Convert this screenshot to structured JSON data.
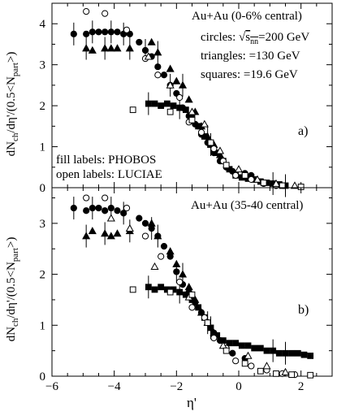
{
  "chart_data": [
    {
      "type": "scatter",
      "panel_label": "a)",
      "title": "Au+Au (0-6% central)",
      "annotations": [
        "circles: √s_nn=200 GeV",
        "triangles: =130 GeV",
        "squares: =19.6 GeV",
        "fill labels: PHOBOS",
        "open labels: LUCIAE"
      ],
      "ylabel": "dN_ch/dη'/(0.5<N_part>)",
      "xlabel": "",
      "xlim": [
        -6,
        3
      ],
      "ylim": [
        0,
        4.5
      ],
      "yticks": [
        0,
        1,
        2,
        3,
        4
      ],
      "series": [
        {
          "name": "circles: √s_nn=200 GeV",
          "marker": "circle",
          "fill": "filled",
          "source": "PHOBOS",
          "x": [
            -5.3,
            -4.9,
            -4.7,
            -4.5,
            -4.3,
            -4.1,
            -3.9,
            -3.7,
            -3.5,
            -3.2,
            -3.0,
            -2.8,
            -2.6,
            -2.4,
            -2.2,
            -2.0,
            -1.8,
            -1.6,
            -1.4,
            -1.2,
            -1.0,
            -0.8,
            -0.6,
            -0.4,
            -0.2,
            0.2,
            0.4
          ],
          "y": [
            3.75,
            3.75,
            3.8,
            3.8,
            3.8,
            3.8,
            3.8,
            3.75,
            3.75,
            3.55,
            3.35,
            3.2,
            2.95,
            2.75,
            2.5,
            2.3,
            1.95,
            1.75,
            1.55,
            1.3,
            1.1,
            0.85,
            0.65,
            0.5,
            0.4,
            0.35,
            0.3
          ]
        },
        {
          "name": "triangles: =130 GeV",
          "marker": "triangle",
          "fill": "filled",
          "source": "PHOBOS",
          "x": [
            -4.9,
            -4.7,
            -4.3,
            -4.1,
            -3.9,
            -3.5,
            -2.8,
            -2.6,
            -2.2,
            -2.0,
            -1.8,
            -1.6,
            -1.4,
            -1.2,
            -1.0,
            -0.8,
            -0.6
          ],
          "y": [
            3.4,
            3.35,
            3.4,
            3.4,
            3.4,
            3.4,
            3.55,
            3.3,
            2.9,
            2.6,
            2.5,
            2.15,
            1.85,
            1.5,
            1.25,
            1.05,
            0.8
          ]
        },
        {
          "name": "squares: =19.6 GeV",
          "marker": "square",
          "fill": "filled",
          "source": "PHOBOS",
          "x": [
            -2.9,
            -2.7,
            -2.5,
            -2.3,
            -2.1,
            -1.9,
            -1.7,
            -1.5,
            -1.3,
            -1.1,
            -0.9,
            -0.7,
            -0.5,
            -0.3,
            -0.1,
            0.1,
            0.3,
            0.5,
            0.7,
            0.9,
            1.1,
            1.3,
            1.5
          ],
          "y": [
            2.05,
            2.05,
            2.0,
            2.05,
            2.0,
            1.95,
            1.9,
            1.75,
            1.5,
            1.25,
            1.05,
            0.85,
            0.65,
            0.45,
            0.3,
            0.25,
            0.22,
            0.2,
            0.15,
            0.12,
            0.1,
            0.08,
            0.05
          ]
        },
        {
          "name": "circles: √s_nn=200 GeV",
          "marker": "circle",
          "fill": "open",
          "source": "LUCIAE",
          "x": [
            -4.9,
            -4.3,
            -3.6,
            -3.0,
            -2.6,
            -1.9,
            -1.6,
            -1.2,
            -0.8,
            -0.5,
            -0.1,
            0.4,
            0.8,
            1.2
          ],
          "y": [
            4.3,
            4.25,
            3.85,
            3.15,
            2.75,
            2.2,
            1.6,
            1.35,
            0.95,
            0.65,
            0.3,
            0.2,
            0.1,
            0.05
          ]
        },
        {
          "name": "triangles: =130 GeV",
          "marker": "triangle",
          "fill": "open",
          "source": "LUCIAE",
          "x": [
            -2.9,
            -2.2,
            -1.5,
            -1.1,
            -0.6,
            0.0,
            0.6,
            1.2,
            1.8
          ],
          "y": [
            3.2,
            2.5,
            1.85,
            1.55,
            0.9,
            0.45,
            0.2,
            0.1,
            0.05
          ]
        },
        {
          "name": "squares: =19.6 GeV",
          "marker": "square",
          "fill": "open",
          "source": "LUCIAE",
          "x": [
            -3.4,
            -2.2,
            -1.5,
            -0.9,
            -0.4,
            0.2,
            0.8,
            1.4,
            2.0
          ],
          "y": [
            1.9,
            1.85,
            1.65,
            1.1,
            0.55,
            0.3,
            0.12,
            0.05,
            0.02
          ]
        }
      ]
    },
    {
      "type": "scatter",
      "panel_label": "b)",
      "title": "Au+Au (35-40 central)",
      "ylabel": "dN_ch/dη'/(0.5<N_part>)",
      "xlabel": "η'",
      "xlim": [
        -6,
        3
      ],
      "ylim": [
        0,
        3.7
      ],
      "xticks": [
        -6,
        -4,
        -2,
        0,
        2
      ],
      "yticks": [
        0,
        1,
        2,
        3
      ],
      "series": [
        {
          "name": "circles: √s_nn=200 GeV",
          "marker": "circle",
          "fill": "filled",
          "source": "PHOBOS",
          "x": [
            -5.3,
            -4.9,
            -4.7,
            -4.5,
            -4.3,
            -4.1,
            -3.9,
            -3.7,
            -3.2,
            -3.0,
            -2.8,
            -2.6,
            -2.4,
            -2.2,
            -2.0,
            -1.8,
            -1.6,
            -1.4,
            -1.2,
            -1.0,
            -0.8,
            -0.6,
            -0.4,
            -0.2,
            0.2
          ],
          "y": [
            3.3,
            3.25,
            3.3,
            3.3,
            3.25,
            3.3,
            3.25,
            3.2,
            3.1,
            3.0,
            2.9,
            2.75,
            2.55,
            2.35,
            2.05,
            1.8,
            1.65,
            1.45,
            1.25,
            1.05,
            0.85,
            0.7,
            0.55,
            0.45,
            0.35
          ]
        },
        {
          "name": "triangles: =130 GeV",
          "marker": "triangle",
          "fill": "filled",
          "source": "PHOBOS",
          "x": [
            -4.9,
            -4.7,
            -4.3,
            -4.1,
            -3.9,
            -3.5,
            -2.8,
            -2.6,
            -2.2,
            -2.0,
            -1.8,
            -1.6,
            -1.4,
            -1.2,
            -1.0,
            -0.8
          ],
          "y": [
            2.75,
            2.85,
            2.8,
            2.75,
            2.8,
            2.85,
            3.0,
            2.75,
            2.45,
            2.2,
            2.0,
            1.75,
            1.5,
            1.25,
            1.05,
            0.85
          ]
        },
        {
          "name": "squares: =19.6 GeV",
          "marker": "square",
          "fill": "filled",
          "source": "PHOBOS",
          "x": [
            -2.9,
            -2.7,
            -2.5,
            -2.3,
            -2.1,
            -1.9,
            -1.7,
            -1.5,
            -1.3,
            -1.1,
            -0.9,
            -0.7,
            -0.5,
            -0.3,
            -0.1,
            0.1,
            0.3,
            0.5,
            0.7,
            0.9,
            1.1,
            1.3,
            1.5,
            1.7,
            1.9,
            2.1,
            2.3
          ],
          "y": [
            1.75,
            1.7,
            1.75,
            1.7,
            1.7,
            1.65,
            1.6,
            1.5,
            1.35,
            1.15,
            0.95,
            0.8,
            0.7,
            0.65,
            0.65,
            0.6,
            0.6,
            0.55,
            0.55,
            0.5,
            0.5,
            0.45,
            0.45,
            0.45,
            0.45,
            0.42,
            0.4
          ]
        },
        {
          "name": "circles: √s_nn=200 GeV",
          "marker": "circle",
          "fill": "open",
          "source": "LUCIAE",
          "x": [
            -4.9,
            -4.3,
            -3.6,
            -3.0,
            -2.5,
            -1.9,
            -1.5,
            -1.1,
            -0.8,
            -0.4,
            -0.1,
            0.4,
            0.9,
            1.4,
            1.8
          ],
          "y": [
            3.5,
            3.5,
            3.3,
            2.75,
            2.35,
            1.85,
            1.35,
            1.15,
            0.75,
            0.55,
            0.3,
            0.2,
            0.12,
            0.05,
            0.03
          ]
        },
        {
          "name": "triangles: =130 GeV",
          "marker": "triangle",
          "fill": "open",
          "source": "LUCIAE",
          "x": [
            -4.1,
            -3.5,
            -2.7,
            -1.6,
            -1.0,
            -0.5,
            0.3,
            0.9,
            1.5
          ],
          "y": [
            3.1,
            2.9,
            2.15,
            1.55,
            1.05,
            0.6,
            0.4,
            0.2,
            0.08
          ]
        },
        {
          "name": "squares: =19.6 GeV",
          "marker": "square",
          "fill": "open",
          "source": "LUCIAE",
          "x": [
            -3.4,
            -2.2,
            -1.5,
            -1.0,
            -0.4,
            0.2,
            0.7,
            1.2,
            1.7,
            2.3
          ],
          "y": [
            1.7,
            1.65,
            1.6,
            1.05,
            0.5,
            0.25,
            0.1,
            0.05,
            0.03,
            0.02
          ]
        }
      ]
    }
  ]
}
